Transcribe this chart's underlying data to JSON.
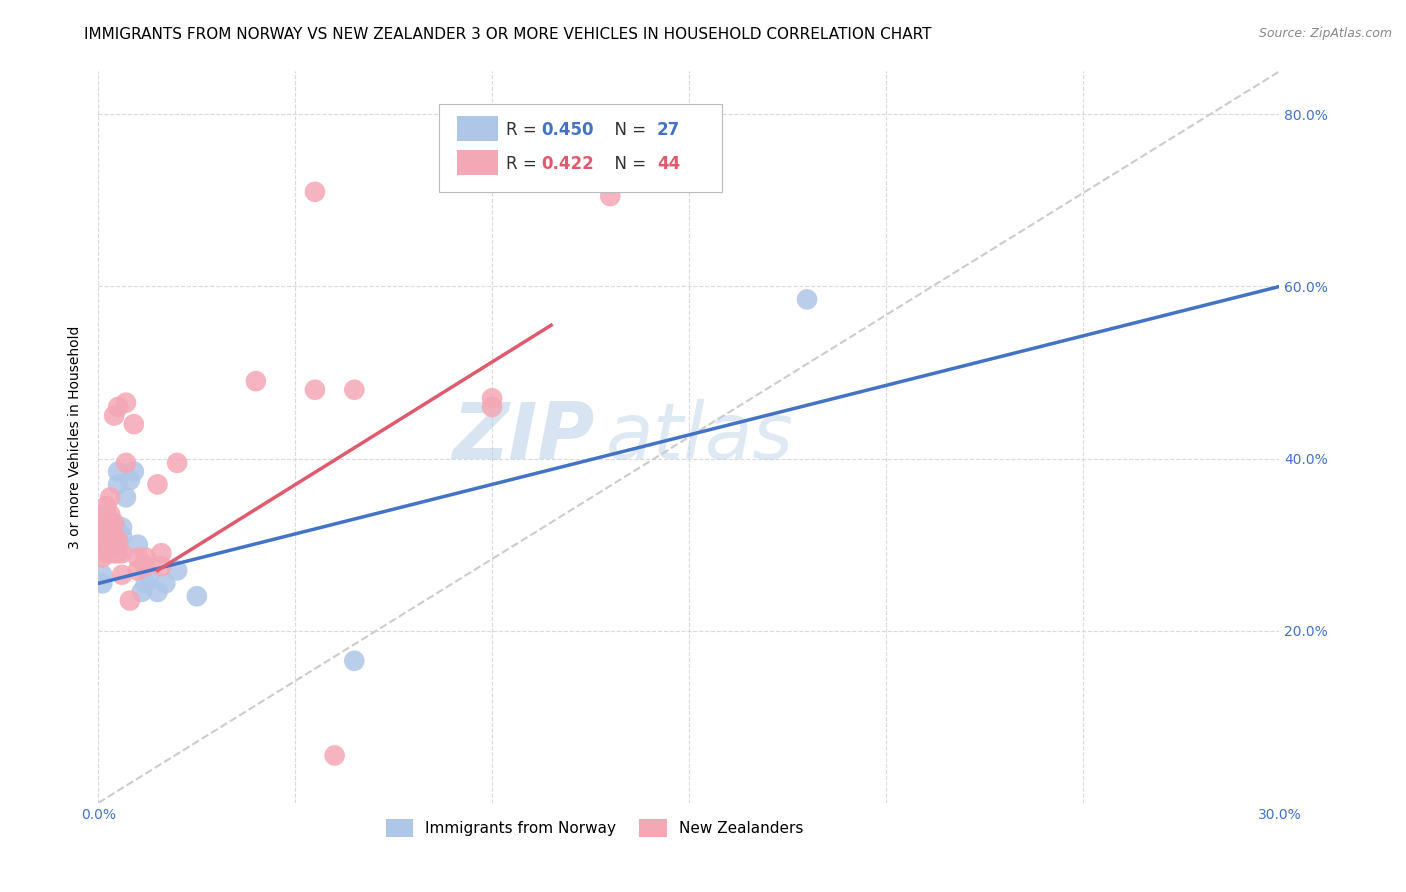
{
  "title": "IMMIGRANTS FROM NORWAY VS NEW ZEALANDER 3 OR MORE VEHICLES IN HOUSEHOLD CORRELATION CHART",
  "source": "Source: ZipAtlas.com",
  "ylabel": "3 or more Vehicles in Household",
  "xlim": [
    0.0,
    0.3
  ],
  "ylim": [
    0.0,
    0.85
  ],
  "xtick_positions": [
    0.0,
    0.05,
    0.1,
    0.15,
    0.2,
    0.25,
    0.3
  ],
  "xtick_labels": [
    "0.0%",
    "",
    "",
    "",
    "",
    "",
    "30.0%"
  ],
  "ytick_positions": [
    0.0,
    0.2,
    0.4,
    0.6,
    0.8
  ],
  "ytick_labels": [
    "",
    "20.0%",
    "40.0%",
    "60.0%",
    "80.0%"
  ],
  "watermark": "ZIPatlas",
  "norway_color": "#aec6e8",
  "nz_color": "#f4a7b5",
  "norway_line_color": "#4472c4",
  "nz_line_color": "#e05a6e",
  "diagonal_color": "#cccccc",
  "norway_scatter": [
    [
      0.001,
      0.255
    ],
    [
      0.001,
      0.265
    ],
    [
      0.002,
      0.295
    ],
    [
      0.003,
      0.3
    ],
    [
      0.003,
      0.315
    ],
    [
      0.004,
      0.3
    ],
    [
      0.004,
      0.31
    ],
    [
      0.004,
      0.325
    ],
    [
      0.005,
      0.3
    ],
    [
      0.005,
      0.315
    ],
    [
      0.005,
      0.37
    ],
    [
      0.005,
      0.385
    ],
    [
      0.006,
      0.31
    ],
    [
      0.006,
      0.32
    ],
    [
      0.007,
      0.355
    ],
    [
      0.008,
      0.375
    ],
    [
      0.009,
      0.385
    ],
    [
      0.01,
      0.3
    ],
    [
      0.011,
      0.245
    ],
    [
      0.012,
      0.255
    ],
    [
      0.013,
      0.265
    ],
    [
      0.015,
      0.245
    ],
    [
      0.017,
      0.255
    ],
    [
      0.02,
      0.27
    ],
    [
      0.025,
      0.24
    ],
    [
      0.065,
      0.165
    ],
    [
      0.18,
      0.585
    ]
  ],
  "nz_scatter": [
    [
      0.001,
      0.285
    ],
    [
      0.001,
      0.305
    ],
    [
      0.001,
      0.315
    ],
    [
      0.001,
      0.325
    ],
    [
      0.001,
      0.335
    ],
    [
      0.002,
      0.29
    ],
    [
      0.002,
      0.3
    ],
    [
      0.002,
      0.32
    ],
    [
      0.002,
      0.335
    ],
    [
      0.002,
      0.345
    ],
    [
      0.003,
      0.29
    ],
    [
      0.003,
      0.3
    ],
    [
      0.003,
      0.32
    ],
    [
      0.003,
      0.335
    ],
    [
      0.003,
      0.355
    ],
    [
      0.004,
      0.29
    ],
    [
      0.004,
      0.31
    ],
    [
      0.004,
      0.325
    ],
    [
      0.004,
      0.45
    ],
    [
      0.005,
      0.29
    ],
    [
      0.005,
      0.305
    ],
    [
      0.005,
      0.46
    ],
    [
      0.006,
      0.265
    ],
    [
      0.006,
      0.29
    ],
    [
      0.007,
      0.395
    ],
    [
      0.007,
      0.465
    ],
    [
      0.008,
      0.235
    ],
    [
      0.009,
      0.44
    ],
    [
      0.01,
      0.27
    ],
    [
      0.01,
      0.285
    ],
    [
      0.012,
      0.275
    ],
    [
      0.012,
      0.285
    ],
    [
      0.015,
      0.37
    ],
    [
      0.016,
      0.275
    ],
    [
      0.016,
      0.29
    ],
    [
      0.02,
      0.395
    ],
    [
      0.04,
      0.49
    ],
    [
      0.055,
      0.48
    ],
    [
      0.06,
      0.055
    ],
    [
      0.065,
      0.48
    ],
    [
      0.1,
      0.46
    ],
    [
      0.1,
      0.47
    ],
    [
      0.13,
      0.705
    ],
    [
      0.055,
      0.71
    ]
  ],
  "norway_line_x": [
    0.0,
    0.3
  ],
  "norway_line_y": [
    0.255,
    0.6
  ],
  "nz_line_x": [
    0.015,
    0.115
  ],
  "nz_line_y": [
    0.27,
    0.555
  ],
  "diagonal_line_x": [
    0.0,
    0.3
  ],
  "diagonal_line_y": [
    0.0,
    0.85
  ],
  "title_fontsize": 11,
  "axis_label_fontsize": 10,
  "tick_fontsize": 10,
  "source_fontsize": 9,
  "background_color": "#ffffff",
  "axis_color": "#4472c4",
  "grid_color": "#d9d9d9",
  "legend_norway_label": "Immigrants from Norway",
  "legend_nz_label": "New Zealanders"
}
